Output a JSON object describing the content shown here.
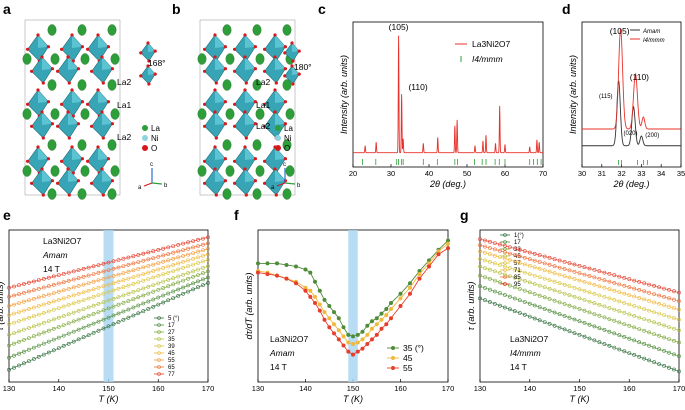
{
  "panels": {
    "a": "a",
    "b": "b",
    "c": "c",
    "d": "d",
    "e": "e",
    "f": "f",
    "g": "g"
  },
  "structure": {
    "a": {
      "layers": [
        "La2",
        "La1",
        "La2"
      ],
      "angle": "168°",
      "legend": [
        "La",
        "Ni",
        "O"
      ]
    },
    "b": {
      "layers": [
        "La2",
        "La1",
        "La2"
      ],
      "angle": "180°",
      "legend": [
        "La",
        "Ni",
        "O"
      ]
    },
    "axes_labels": [
      "c",
      "a",
      "b"
    ]
  },
  "colors": {
    "la": "#2e9e3a",
    "ni": "#8fd3e0",
    "o": "#d7191c",
    "octahedron": "#37a5b5",
    "highlight": "#a6d3f0"
  },
  "chart_data": [
    {
      "id": "c",
      "type": "line",
      "xlabel": "2θ (deg.)",
      "ylabel": "Intensity (arb. units)",
      "xlim": [
        20,
        70
      ],
      "xticks": [
        20,
        30,
        40,
        50,
        60,
        70
      ],
      "legend": [
        "La3Ni2O7",
        "I4/mmm"
      ],
      "annotations": [
        "(105)",
        "(110)"
      ],
      "peaks": [
        {
          "x": 23.2,
          "h": 0.06
        },
        {
          "x": 26.1,
          "h": 0.09
        },
        {
          "x": 32.0,
          "h": 1.0
        },
        {
          "x": 32.8,
          "h": 0.5
        },
        {
          "x": 33.2,
          "h": 0.12
        },
        {
          "x": 38.5,
          "h": 0.08
        },
        {
          "x": 42.3,
          "h": 0.13
        },
        {
          "x": 46.8,
          "h": 0.23
        },
        {
          "x": 47.4,
          "h": 0.28
        },
        {
          "x": 52.1,
          "h": 0.06
        },
        {
          "x": 54.2,
          "h": 0.1
        },
        {
          "x": 55.0,
          "h": 0.15
        },
        {
          "x": 57.5,
          "h": 0.08
        },
        {
          "x": 58.6,
          "h": 0.4
        },
        {
          "x": 60.0,
          "h": 0.07
        },
        {
          "x": 66.5,
          "h": 0.05
        },
        {
          "x": 68.4,
          "h": 0.11
        },
        {
          "x": 69.0,
          "h": 0.09
        }
      ],
      "ticks_x": [
        22.5,
        26.0,
        31.5,
        32.0,
        32.8,
        33.2,
        38.5,
        42.2,
        46.8,
        47.5,
        52.0,
        54.0,
        55.0,
        57.4,
        58.5,
        60.0,
        66.5,
        67.5,
        68.5,
        69.5
      ]
    },
    {
      "id": "d",
      "type": "line",
      "xlabel": "2θ (deg.)",
      "ylabel": "Intensity (arb. units)",
      "xlim": [
        30,
        35
      ],
      "xticks": [
        30,
        31,
        32,
        33,
        34,
        35
      ],
      "series": [
        {
          "name": "Amam",
          "color": "#333333"
        },
        {
          "name": "I4/mmm",
          "color": "#e8312a"
        }
      ],
      "annotations_black": [
        "(115)",
        "(020)",
        "(200)"
      ],
      "annotations_red": [
        "(105)",
        "(110)"
      ],
      "ticks_x": [
        31.85,
        32.0,
        32.8,
        33.1,
        33.3
      ]
    },
    {
      "id": "e",
      "type": "line",
      "xlabel": "T (K)",
      "ylabel": "τ (arb. units)",
      "xlim": [
        130,
        170
      ],
      "xticks": [
        130,
        140,
        150,
        160,
        170
      ],
      "highlight": [
        149,
        151
      ],
      "title_lines": [
        "La3Ni2O7",
        "Amam",
        "14 T"
      ],
      "series": [
        {
          "name": "5 (°)",
          "color": "#2f6e3a",
          "start": 0.08,
          "slope": 0.0143
        },
        {
          "name": "17",
          "color": "#4f8c3a",
          "start": 0.16,
          "slope": 0.0132
        },
        {
          "name": "27",
          "color": "#7fa83d",
          "start": 0.24,
          "slope": 0.0122
        },
        {
          "name": "35",
          "color": "#b4c043",
          "start": 0.31,
          "slope": 0.0113
        },
        {
          "name": "39",
          "color": "#d9c641",
          "start": 0.38,
          "slope": 0.0106
        },
        {
          "name": "45",
          "color": "#f0b83c",
          "start": 0.44,
          "slope": 0.01
        },
        {
          "name": "55",
          "color": "#f49b3a",
          "start": 0.5,
          "slope": 0.0094
        },
        {
          "name": "65",
          "color": "#ef6e34",
          "start": 0.56,
          "slope": 0.0088
        },
        {
          "name": "77",
          "color": "#e63e2c",
          "start": 0.62,
          "slope": 0.0083
        }
      ]
    },
    {
      "id": "f",
      "type": "line",
      "xlabel": "T (K)",
      "ylabel": "dτ/dT (arb. units)",
      "xlim": [
        130,
        170
      ],
      "xticks": [
        130,
        140,
        150,
        160,
        170
      ],
      "highlight": [
        149,
        151
      ],
      "title_lines": [
        "La3Ni2O7",
        "Amam",
        "14 T"
      ],
      "series": [
        {
          "name": "35 (°)",
          "color": "#4f8c3a",
          "x": [
            130,
            132,
            134,
            136,
            138,
            140,
            141,
            142,
            143,
            144,
            145,
            146,
            147,
            148,
            149,
            150,
            151,
            152,
            153,
            154,
            155,
            156,
            157,
            158,
            160,
            162,
            164,
            166,
            168,
            170
          ],
          "y": [
            0.78,
            0.78,
            0.78,
            0.77,
            0.76,
            0.74,
            0.72,
            0.66,
            0.6,
            0.54,
            0.5,
            0.46,
            0.42,
            0.36,
            0.31,
            0.3,
            0.31,
            0.33,
            0.37,
            0.4,
            0.42,
            0.45,
            0.48,
            0.52,
            0.58,
            0.65,
            0.73,
            0.8,
            0.87,
            0.93
          ]
        },
        {
          "name": "45",
          "color": "#f0b83c",
          "x": [
            130,
            132,
            134,
            136,
            138,
            140,
            141,
            142,
            143,
            144,
            145,
            146,
            147,
            148,
            149,
            150,
            151,
            152,
            153,
            154,
            155,
            156,
            157,
            158,
            160,
            162,
            164,
            166,
            168,
            170
          ],
          "y": [
            0.73,
            0.72,
            0.7,
            0.68,
            0.66,
            0.62,
            0.6,
            0.56,
            0.51,
            0.46,
            0.42,
            0.38,
            0.34,
            0.3,
            0.26,
            0.25,
            0.26,
            0.28,
            0.31,
            0.35,
            0.38,
            0.41,
            0.44,
            0.48,
            0.55,
            0.62,
            0.71,
            0.78,
            0.86,
            0.91
          ]
        },
        {
          "name": "55",
          "color": "#e63e2c",
          "x": [
            130,
            132,
            134,
            136,
            138,
            140,
            141,
            142,
            143,
            144,
            145,
            146,
            147,
            148,
            149,
            150,
            151,
            152,
            153,
            154,
            155,
            156,
            157,
            158,
            160,
            162,
            164,
            166,
            168,
            170
          ],
          "y": [
            0.72,
            0.71,
            0.7,
            0.68,
            0.65,
            0.6,
            0.56,
            0.52,
            0.47,
            0.41,
            0.36,
            0.32,
            0.28,
            0.24,
            0.2,
            0.18,
            0.2,
            0.22,
            0.25,
            0.28,
            0.31,
            0.35,
            0.38,
            0.42,
            0.5,
            0.58,
            0.68,
            0.76,
            0.84,
            0.88
          ]
        }
      ]
    },
    {
      "id": "g",
      "type": "line",
      "xlabel": "T (K)",
      "ylabel": "τ (arb. units)",
      "xlim": [
        130,
        170
      ],
      "xticks": [
        130,
        140,
        150,
        160,
        170
      ],
      "title_lines": [
        "La3Ni2O7",
        "I4/mmm",
        "14 T"
      ],
      "series": [
        {
          "name": "1(°)",
          "color": "#2f6e3a",
          "start": 0.55,
          "slope": -0.012
        },
        {
          "name": "17",
          "color": "#4f8c3a",
          "start": 0.63,
          "slope": -0.0115
        },
        {
          "name": "33",
          "color": "#7fa83d",
          "start": 0.7,
          "slope": -0.011
        },
        {
          "name": "45",
          "color": "#b4c043",
          "start": 0.76,
          "slope": -0.0105
        },
        {
          "name": "57",
          "color": "#d9c641",
          "start": 0.81,
          "slope": -0.01
        },
        {
          "name": "71",
          "color": "#f0b83c",
          "start": 0.86,
          "slope": -0.0096
        },
        {
          "name": "85",
          "color": "#ef6e34",
          "start": 0.9,
          "slope": -0.0092
        },
        {
          "name": "95",
          "color": "#e63e2c",
          "start": 0.94,
          "slope": -0.0088
        }
      ]
    }
  ]
}
